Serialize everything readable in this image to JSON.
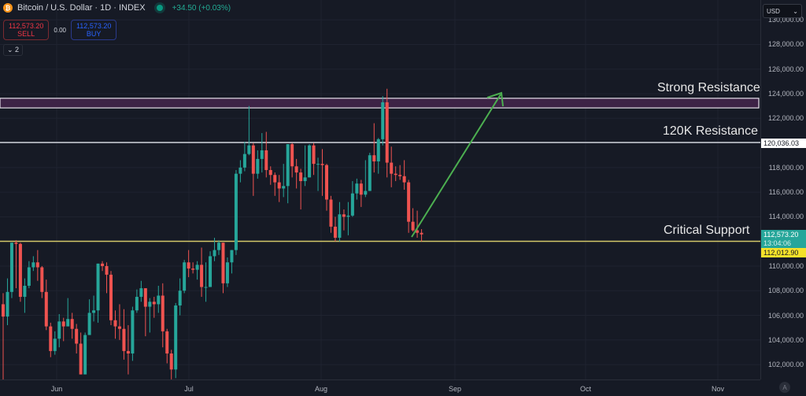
{
  "header": {
    "symbol_icon": "bitcoin-icon",
    "title": "Bitcoin / U.S. Dollar · 1D · INDEX",
    "status_icon": "market-open-dot",
    "change": "+34.50 (+0.03%)"
  },
  "trade": {
    "sell_price": "112,573.20",
    "sell_label": "SELL",
    "spread": "0.00",
    "buy_price": "112,573.20",
    "buy_label": "BUY"
  },
  "indicators_toggle": "⌄ 2",
  "currency": {
    "value": "USD",
    "icon": "chevron-down-icon"
  },
  "price_axis": {
    "ticks": [
      "130,000.00",
      "128,000.00",
      "126,000.00",
      "124,000.00",
      "122,000.00",
      "118,000.00",
      "116,000.00",
      "114,000.00",
      "110,000.00",
      "108,000.00",
      "106,000.00",
      "104,000.00",
      "102,000.00"
    ],
    "tag_120k": "120,036.03",
    "last_price": "112,573.20",
    "countdown": "13:04:06",
    "support_price": "112,012.90"
  },
  "time_axis": {
    "ticks": [
      "Jun",
      "Jul",
      "Aug",
      "Sep",
      "Oct",
      "Nov"
    ],
    "auto_label": "A"
  },
  "annotations": {
    "strong_resistance": "Strong Resistance",
    "resistance_120k": "120K Resistance",
    "critical_support": "Critical Support"
  },
  "colors": {
    "up": "#26a69a",
    "down": "#ef5350",
    "support": "#d4c86a",
    "resistance": "#d1d4dc",
    "zone": "#3d2346",
    "arrow": "#4caf50",
    "bg": "#161a25",
    "grid": "#1f2330"
  },
  "chart_data": {
    "type": "candlestick",
    "title": "Bitcoin / U.S. Dollar · 1D · INDEX",
    "xlabel": "",
    "ylabel": "USD",
    "ylim": [
      100500,
      131000
    ],
    "x_ticks": [
      "Jun",
      "Jul",
      "Aug",
      "Sep",
      "Oct",
      "Nov"
    ],
    "levels": [
      {
        "name": "Strong Resistance",
        "low": 123100,
        "high": 123500
      },
      {
        "name": "120K Resistance",
        "value": 120036.03
      },
      {
        "name": "Critical Support",
        "value": 112012.9
      }
    ],
    "arrow": {
      "from": [
        112000,
        "Aug 22"
      ],
      "to": [
        124000,
        "Sep 10"
      ]
    },
    "candles": [
      [
        106900,
        105900,
        107800,
        100700
      ],
      [
        105900,
        107900,
        109000,
        105200
      ],
      [
        107900,
        111900,
        111900,
        107400
      ],
      [
        111900,
        111800,
        112100,
        108200
      ],
      [
        111800,
        107500,
        111900,
        107100
      ],
      [
        107500,
        108400,
        109000,
        106200
      ],
      [
        108400,
        109900,
        110400,
        108200
      ],
      [
        109900,
        110300,
        110800,
        109600
      ],
      [
        110300,
        109900,
        111300,
        108800
      ],
      [
        109900,
        107900,
        110000,
        107400
      ],
      [
        107900,
        105100,
        108900,
        104800
      ],
      [
        105100,
        103100,
        105400,
        102600
      ],
      [
        103100,
        104100,
        104700,
        102800
      ],
      [
        104100,
        105500,
        106100,
        103400
      ],
      [
        105500,
        105100,
        105800,
        103900
      ],
      [
        105100,
        105700,
        107400,
        105400
      ],
      [
        105700,
        104900,
        106200,
        104100
      ],
      [
        104900,
        103700,
        105300,
        102900
      ],
      [
        103700,
        101200,
        104600,
        101200
      ],
      [
        101200,
        104400,
        104600,
        101300
      ],
      [
        104400,
        106200,
        107300,
        105200
      ],
      [
        106200,
        106400,
        107600,
        105500
      ],
      [
        106400,
        110200,
        110200,
        105400
      ],
      [
        110200,
        110000,
        110400,
        109600
      ],
      [
        110000,
        109300,
        110300,
        107800
      ],
      [
        109300,
        105600,
        109600,
        105200
      ],
      [
        105600,
        105100,
        106400,
        104100
      ],
      [
        105100,
        104900,
        106900,
        104000
      ],
      [
        104900,
        103100,
        106500,
        102400
      ],
      [
        103100,
        102900,
        105200,
        101200
      ],
      [
        102900,
        106400,
        106700,
        102300
      ],
      [
        106400,
        107500,
        108100,
        106200
      ],
      [
        107500,
        108200,
        108800,
        107100
      ],
      [
        108200,
        106700,
        108200,
        104300
      ],
      [
        106700,
        107100,
        107400,
        104600
      ],
      [
        107100,
        106900,
        107500,
        105800
      ],
      [
        106900,
        107600,
        108400,
        106200
      ],
      [
        107600,
        104700,
        108600,
        103400
      ],
      [
        104700,
        102900,
        104900,
        102100
      ],
      [
        102900,
        101600,
        103200,
        100800
      ],
      [
        101600,
        106800,
        107000,
        100900
      ],
      [
        106800,
        108000,
        109000,
        106000
      ],
      [
        108000,
        110300,
        110500,
        107800
      ],
      [
        110300,
        109800,
        111300,
        109100
      ],
      [
        109800,
        109700,
        110300,
        109400
      ],
      [
        109700,
        110100,
        110400,
        108900
      ],
      [
        110100,
        108300,
        111500,
        107500
      ],
      [
        108300,
        108300,
        110300,
        107100
      ],
      [
        108300,
        110800,
        111200,
        108300
      ],
      [
        110800,
        111300,
        112300,
        110400
      ],
      [
        111300,
        111900,
        112100,
        110900
      ],
      [
        111900,
        108600,
        111900,
        107800
      ],
      [
        108600,
        110300,
        110700,
        108300
      ],
      [
        110300,
        111300,
        111300,
        109400
      ],
      [
        111300,
        117500,
        117800,
        110900
      ],
      [
        117500,
        118000,
        118600,
        116800
      ],
      [
        118000,
        119100,
        120100,
        117700
      ],
      [
        119100,
        119800,
        123000,
        119000
      ],
      [
        119800,
        117500,
        120000,
        115700
      ],
      [
        117500,
        118700,
        119400,
        117100
      ],
      [
        118700,
        119400,
        120800,
        117600
      ],
      [
        119400,
        117800,
        120900,
        117200
      ],
      [
        117800,
        117400,
        118100,
        116600
      ],
      [
        117400,
        116800,
        117600,
        115700
      ],
      [
        116800,
        116300,
        117400,
        115200
      ],
      [
        116300,
        116500,
        118300,
        115600
      ],
      [
        116500,
        119900,
        119900,
        115100
      ],
      [
        119900,
        118100,
        120000,
        117200
      ],
      [
        118100,
        117600,
        118700,
        116300
      ],
      [
        117600,
        116900,
        117900,
        114600
      ],
      [
        116900,
        117200,
        119800,
        116500
      ],
      [
        117200,
        119800,
        119900,
        117200
      ],
      [
        119800,
        118300,
        120000,
        117400
      ],
      [
        118300,
        118300,
        118800,
        116100
      ],
      [
        118300,
        118200,
        119500,
        115700
      ],
      [
        118200,
        115400,
        118300,
        114500
      ],
      [
        115400,
        113200,
        115700,
        112700
      ],
      [
        113200,
        112300,
        114000,
        112000
      ],
      [
        112300,
        114200,
        115200,
        112000
      ],
      [
        114200,
        114000,
        114600,
        112900
      ],
      [
        114000,
        114100,
        115200,
        112500
      ],
      [
        114100,
        115900,
        116900,
        114000
      ],
      [
        115900,
        116700,
        117100,
        115400
      ],
      [
        116700,
        115800,
        117000,
        114800
      ],
      [
        115800,
        116100,
        118600,
        115600
      ],
      [
        116100,
        119000,
        119200,
        116100
      ],
      [
        119000,
        118500,
        121600,
        117600
      ],
      [
        118500,
        120300,
        120400,
        117500
      ],
      [
        120300,
        123300,
        123800,
        119800
      ],
      [
        123300,
        118400,
        124400,
        117200
      ],
      [
        118400,
        117500,
        119700,
        116400
      ],
      [
        117500,
        117400,
        118100,
        116900
      ],
      [
        117400,
        117300,
        118200,
        117000
      ],
      [
        117300,
        116800,
        118600,
        116200
      ],
      [
        116800,
        113600,
        117000,
        112700
      ],
      [
        113600,
        112900,
        114700,
        112800
      ],
      [
        112900,
        112700,
        114500,
        112300
      ],
      [
        112700,
        112573,
        113000,
        112000
      ]
    ]
  }
}
